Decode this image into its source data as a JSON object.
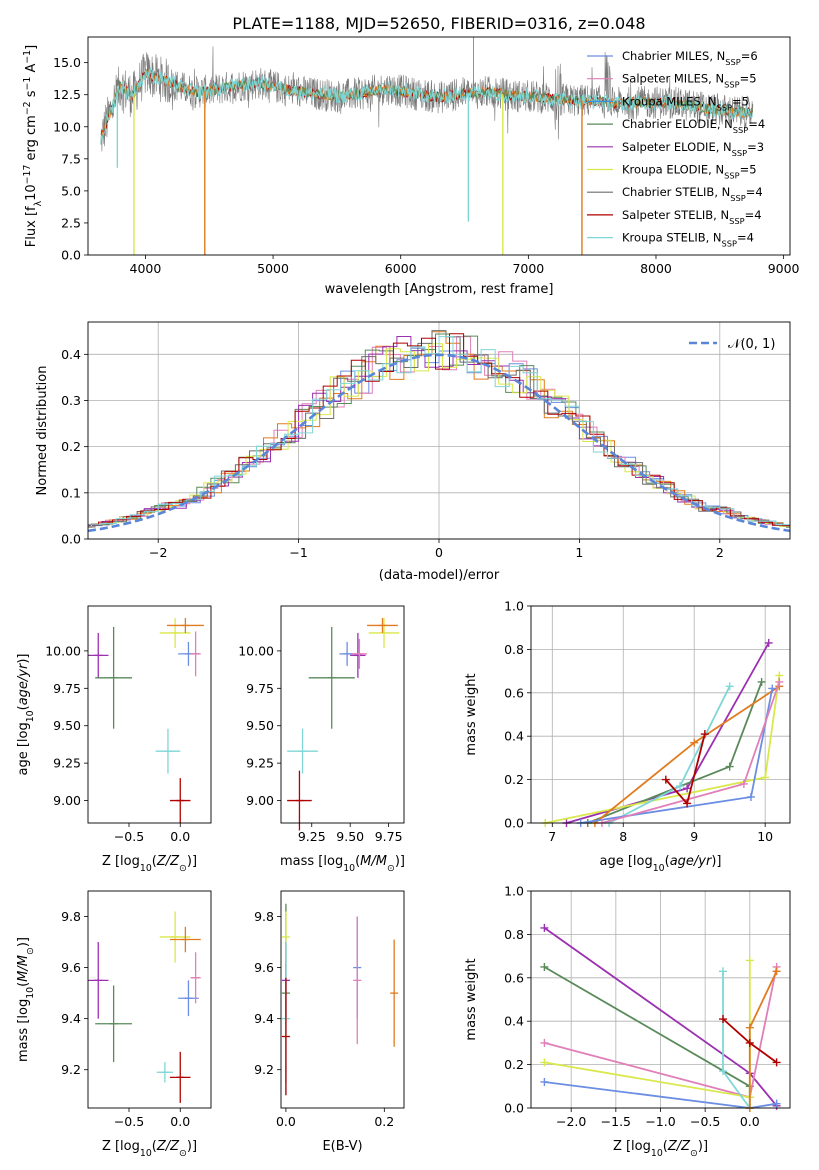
{
  "title": "PLATE=1188, MJD=52650, FIBERID=0316, z=0.048",
  "colors": {
    "c1": "#6b8de3",
    "c2": "#e07fb8",
    "c3": "#3b8ee0",
    "c4": "#5a8a5a",
    "c5": "#9b30b0",
    "c6": "#d9e84a",
    "c7": "#6e6e6e",
    "c8": "#b00000",
    "c9": "#7fd6d6",
    "orange": "#e07b1f"
  },
  "chart_data": [
    {
      "id": "spectrum",
      "type": "line",
      "xlabel": "wavelength [Angstrom, rest frame]",
      "ylabel": "Flux [f_λ 10^-17 erg cm^-2 s^-1 A^-1]",
      "xlim": [
        3550,
        9050
      ],
      "ylim": [
        0,
        17
      ],
      "xticks": [
        "4000",
        "5000",
        "6000",
        "7000",
        "8000",
        "9000"
      ],
      "yticks": [
        "0.0",
        "2.5",
        "5.0",
        "7.5",
        "10.0",
        "12.5",
        "15.0"
      ],
      "legend_position": "upper right",
      "legend": [
        {
          "name": "Chabrier MILES, N",
          "sub": "SSP",
          "val": "=6",
          "color": "#6b8de3"
        },
        {
          "name": "Salpeter MILES, N",
          "sub": "SSP",
          "val": "=5",
          "color": "#e07fb8"
        },
        {
          "name": "Kroupa MILES, N",
          "sub": "SSP",
          "val": "=5",
          "color": "#3b8ee0"
        },
        {
          "name": "Chabrier ELODIE, N",
          "sub": "SSP",
          "val": "=4",
          "color": "#5a8a5a"
        },
        {
          "name": "Salpeter ELODIE, N",
          "sub": "SSP",
          "val": "=3",
          "color": "#9b30b0"
        },
        {
          "name": "Kroupa ELODIE, N",
          "sub": "SSP",
          "val": "=5",
          "color": "#d9e84a"
        },
        {
          "name": "Chabrier STELIB, N",
          "sub": "SSP",
          "val": "=4",
          "color": "#6e6e6e"
        },
        {
          "name": "Salpeter STELIB, N",
          "sub": "SSP",
          "val": "=4",
          "color": "#b00000"
        },
        {
          "name": "Kroupa STELIB, N",
          "sub": "SSP",
          "val": "=4",
          "color": "#7fd6d6"
        }
      ],
      "data_shape": {
        "x": [
          3650,
          3700,
          3800,
          3900,
          4000,
          4100,
          4200,
          4300,
          4400,
          4500,
          4700,
          4900,
          5100,
          5300,
          5500,
          5700,
          5900,
          6100,
          6300,
          6500,
          6700,
          6900,
          7100,
          7300,
          7500,
          7700,
          7900,
          8100,
          8300,
          8500,
          8700
        ],
        "y": [
          9.0,
          10.5,
          13.2,
          12.4,
          14.2,
          13.8,
          13.4,
          13.0,
          12.7,
          12.8,
          13.2,
          13.4,
          12.9,
          12.6,
          12.4,
          12.6,
          13.0,
          12.6,
          12.3,
          12.6,
          12.7,
          12.4,
          12.3,
          12.1,
          12.0,
          11.8,
          11.9,
          11.9,
          11.6,
          11.3,
          11.1
        ]
      }
    },
    {
      "id": "residuals",
      "type": "histogram",
      "xlabel": "(data-model)/error",
      "ylabel": "Normed distribution",
      "xlim": [
        -2.5,
        2.5
      ],
      "ylim": [
        0,
        0.47
      ],
      "xticks": [
        "−2",
        "−1",
        "0",
        "1",
        "2"
      ],
      "yticks": [
        "0.0",
        "0.1",
        "0.2",
        "0.3",
        "0.4"
      ],
      "legend": "𝒩(0, 1)",
      "legend_position": "upper right",
      "grid": true
    },
    {
      "id": "age_vs_Z",
      "type": "scatter",
      "xlabel": "Z [log10(Z/Z⊙)]",
      "ylabel": "age  [log10(age/yr)]",
      "xlim": [
        -0.9,
        0.3
      ],
      "ylim": [
        8.85,
        10.3
      ],
      "xticks": [
        "−0.5",
        "0.0"
      ],
      "yticks": [
        "9.00",
        "9.25",
        "9.50",
        "9.75",
        "10.00"
      ],
      "points": [
        {
          "x": -0.8,
          "y": 9.97,
          "xerr": 0.1,
          "yerr": 0.15,
          "color": "#9b30b0"
        },
        {
          "x": -0.65,
          "y": 9.82,
          "xerr": 0.18,
          "yerr": 0.34,
          "color": "#5a8a5a"
        },
        {
          "x": -0.05,
          "y": 10.12,
          "xerr": 0.15,
          "yerr": 0.1,
          "color": "#d9e84a"
        },
        {
          "x": 0.05,
          "y": 10.17,
          "xerr": 0.18,
          "yerr": 0.05,
          "color": "#e07b1f"
        },
        {
          "x": -0.12,
          "y": 9.33,
          "xerr": 0.12,
          "yerr": 0.15,
          "color": "#7fd6d6"
        },
        {
          "x": 0.08,
          "y": 9.98,
          "xerr": 0.1,
          "yerr": 0.08,
          "color": "#6b8de3"
        },
        {
          "x": 0.15,
          "y": 9.98,
          "xerr": 0.05,
          "yerr": 0.15,
          "color": "#e07fb8"
        },
        {
          "x": 0.0,
          "y": 9.0,
          "xerr": 0.1,
          "yerr": 0.15,
          "color": "#b00000"
        }
      ]
    },
    {
      "id": "age_vs_mass",
      "type": "scatter",
      "xlabel": "mass [log10(M/M⊙)]",
      "ylabel": "",
      "xlim": [
        9.05,
        9.85
      ],
      "ylim": [
        8.85,
        10.3
      ],
      "xticks": [
        "9.25",
        "9.50",
        "9.75"
      ],
      "yticks": [
        "9.00",
        "9.25",
        "9.50",
        "9.75",
        "10.00"
      ],
      "points": [
        {
          "x": 9.55,
          "y": 9.97,
          "xerr": 0.05,
          "yerr": 0.15,
          "color": "#9b30b0"
        },
        {
          "x": 9.38,
          "y": 9.82,
          "xerr": 0.15,
          "yerr": 0.34,
          "color": "#5a8a5a"
        },
        {
          "x": 9.72,
          "y": 10.12,
          "xerr": 0.1,
          "yerr": 0.1,
          "color": "#d9e84a"
        },
        {
          "x": 9.71,
          "y": 10.17,
          "xerr": 0.1,
          "yerr": 0.05,
          "color": "#e07b1f"
        },
        {
          "x": 9.19,
          "y": 9.33,
          "xerr": 0.1,
          "yerr": 0.15,
          "color": "#7fd6d6"
        },
        {
          "x": 9.48,
          "y": 9.98,
          "xerr": 0.05,
          "yerr": 0.08,
          "color": "#6b8de3"
        },
        {
          "x": 9.56,
          "y": 9.98,
          "xerr": 0.05,
          "yerr": 0.1,
          "color": "#e07fb8"
        },
        {
          "x": 9.17,
          "y": 9.0,
          "xerr": 0.08,
          "yerr": 0.2,
          "color": "#b00000"
        }
      ]
    },
    {
      "id": "weight_vs_age",
      "type": "line",
      "xlabel": "age  [log10(age/yr)]",
      "ylabel": "mass weight",
      "xlim": [
        6.7,
        10.35
      ],
      "ylim": [
        0,
        1.0
      ],
      "xticks": [
        "7",
        "8",
        "9",
        "10"
      ],
      "yticks": [
        "0.0",
        "0.2",
        "0.4",
        "0.6",
        "0.8",
        "1.0"
      ],
      "grid": true,
      "series": [
        {
          "color": "#9b30b0",
          "x": [
            7.2,
            8.9,
            10.05
          ],
          "y": [
            0.0,
            0.16,
            0.83
          ]
        },
        {
          "color": "#5a8a5a",
          "x": [
            7.5,
            9.5,
            9.95
          ],
          "y": [
            0.0,
            0.26,
            0.65
          ]
        },
        {
          "color": "#d9e84a",
          "x": [
            6.9,
            10.0,
            10.2
          ],
          "y": [
            0.0,
            0.21,
            0.68
          ]
        },
        {
          "color": "#e07b1f",
          "x": [
            7.6,
            9.0,
            10.2
          ],
          "y": [
            0.0,
            0.37,
            0.63
          ]
        },
        {
          "color": "#7fd6d6",
          "x": [
            7.8,
            8.8,
            9.5
          ],
          "y": [
            0.0,
            0.17,
            0.63
          ]
        },
        {
          "color": "#6b8de3",
          "x": [
            7.4,
            9.8,
            10.1
          ],
          "y": [
            0.0,
            0.12,
            0.62
          ]
        },
        {
          "color": "#e07fb8",
          "x": [
            7.7,
            9.7,
            10.2
          ],
          "y": [
            0.0,
            0.18,
            0.65
          ]
        },
        {
          "color": "#b00000",
          "x": [
            8.6,
            8.9,
            9.15
          ],
          "y": [
            0.2,
            0.09,
            0.41
          ]
        }
      ]
    },
    {
      "id": "mass_vs_Z",
      "type": "scatter",
      "xlabel": "Z [log10(Z/Z⊙)]",
      "ylabel": "mass [log10(M/M⊙)]",
      "xlim": [
        -0.9,
        0.3
      ],
      "ylim": [
        9.05,
        9.9
      ],
      "xticks": [
        "−0.5",
        "0.0"
      ],
      "yticks": [
        "9.2",
        "9.4",
        "9.6",
        "9.8"
      ],
      "points": [
        {
          "x": -0.8,
          "y": 9.55,
          "xerr": 0.1,
          "yerr": 0.15,
          "color": "#9b30b0"
        },
        {
          "x": -0.65,
          "y": 9.38,
          "xerr": 0.18,
          "yerr": 0.15,
          "color": "#5a8a5a"
        },
        {
          "x": -0.05,
          "y": 9.72,
          "xerr": 0.15,
          "yerr": 0.1,
          "color": "#d9e84a"
        },
        {
          "x": 0.05,
          "y": 9.71,
          "xerr": 0.15,
          "yerr": 0.05,
          "color": "#e07b1f"
        },
        {
          "x": -0.15,
          "y": 9.19,
          "xerr": 0.08,
          "yerr": 0.04,
          "color": "#7fd6d6"
        },
        {
          "x": 0.08,
          "y": 9.48,
          "xerr": 0.1,
          "yerr": 0.07,
          "color": "#6b8de3"
        },
        {
          "x": 0.15,
          "y": 9.56,
          "xerr": 0.05,
          "yerr": 0.1,
          "color": "#e07fb8"
        },
        {
          "x": 0.0,
          "y": 9.17,
          "xerr": 0.1,
          "yerr": 0.1,
          "color": "#b00000"
        }
      ]
    },
    {
      "id": "mass_vs_ebv",
      "type": "scatter",
      "xlabel": "E(B-V)",
      "ylabel": "",
      "xlim": [
        -0.01,
        0.24
      ],
      "ylim": [
        9.05,
        9.9
      ],
      "xticks": [
        "0.0",
        "0.2"
      ],
      "yticks": [
        "9.2",
        "9.4",
        "9.6",
        "9.8"
      ],
      "points": [
        {
          "x": 0.0,
          "y": 9.55,
          "yerr": 0.15,
          "color": "#9b30b0"
        },
        {
          "x": 0.0,
          "y": 9.5,
          "yerr": 0.35,
          "color": "#5a8a5a"
        },
        {
          "x": 0.0,
          "y": 9.72,
          "yerr": 0.1,
          "color": "#d9e84a"
        },
        {
          "x": 0.22,
          "y": 9.5,
          "yerr": 0.21,
          "color": "#e07b1f"
        },
        {
          "x": 0.0,
          "y": 9.4,
          "yerr": 0.3,
          "color": "#7fd6d6"
        },
        {
          "x": 0.145,
          "y": 9.6,
          "yerr": 0.2,
          "color": "#6b8de3"
        },
        {
          "x": 0.145,
          "y": 9.55,
          "yerr": 0.25,
          "color": "#e07fb8"
        },
        {
          "x": 0.0,
          "y": 9.33,
          "yerr": 0.23,
          "color": "#b00000"
        }
      ]
    },
    {
      "id": "weight_vs_Z",
      "type": "line",
      "xlabel": "Z [log10(Z/Z⊙)]",
      "ylabel": "mass weight",
      "xlim": [
        -2.45,
        0.45
      ],
      "ylim": [
        0,
        1.0
      ],
      "xticks": [
        "−2.0",
        "−1.5",
        "−1.0",
        "−0.5",
        "0.0"
      ],
      "yticks": [
        "0.0",
        "0.2",
        "0.4",
        "0.6",
        "0.8",
        "1.0"
      ],
      "grid": true,
      "series": [
        {
          "color": "#9b30b0",
          "x": [
            -2.3,
            0.0,
            0.3
          ],
          "y": [
            0.83,
            0.16,
            0.01
          ]
        },
        {
          "color": "#5a8a5a",
          "x": [
            -2.3,
            0.0,
            0.0
          ],
          "y": [
            0.65,
            0.1,
            0.0
          ]
        },
        {
          "color": "#e07fb8",
          "x": [
            -2.3,
            0.0,
            0.3
          ],
          "y": [
            0.3,
            0.05,
            0.65
          ]
        },
        {
          "color": "#d9e84a",
          "x": [
            -2.3,
            0.0,
            0.0
          ],
          "y": [
            0.21,
            0.05,
            0.68
          ]
        },
        {
          "color": "#6b8de3",
          "x": [
            -2.3,
            0.0,
            0.3
          ],
          "y": [
            0.12,
            0.0,
            0.02
          ]
        },
        {
          "color": "#7fd6d6",
          "x": [
            -0.3,
            -0.3,
            0.0
          ],
          "y": [
            0.63,
            0.17,
            0.0
          ]
        },
        {
          "color": "#e07b1f",
          "x": [
            0.0,
            0.0,
            0.3
          ],
          "y": [
            0.0,
            0.37,
            0.63
          ]
        },
        {
          "color": "#b00000",
          "x": [
            -0.3,
            0.0,
            0.3
          ],
          "y": [
            0.41,
            0.3,
            0.21
          ]
        }
      ]
    }
  ]
}
